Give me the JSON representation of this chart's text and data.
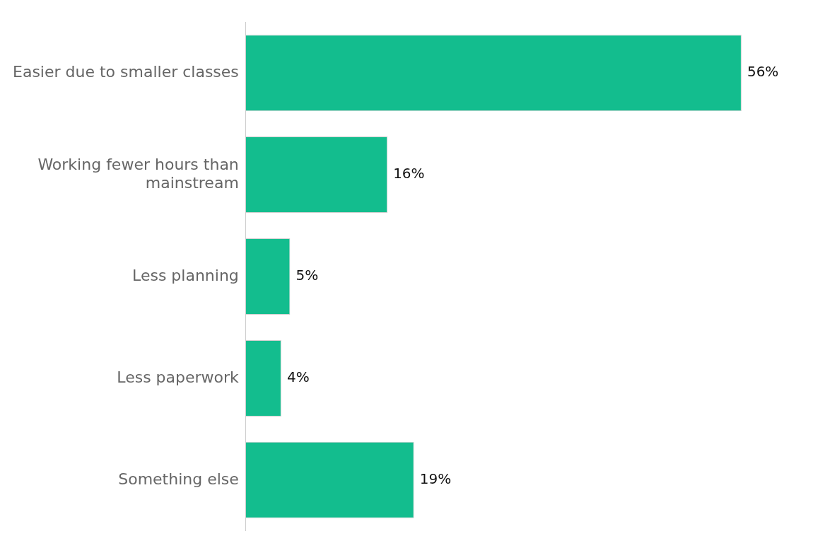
{
  "chart_data": {
    "type": "bar",
    "orientation": "horizontal",
    "categories": [
      "Easier due to smaller classes",
      "Working fewer hours than mainstream",
      "Less planning",
      "Less paperwork",
      "Something else"
    ],
    "values": [
      56,
      16,
      5,
      4,
      19
    ],
    "value_labels": [
      "56%",
      "16%",
      "5%",
      "4%",
      "19%"
    ],
    "color": "#13bd8e",
    "tick_labels": "y",
    "grid": false,
    "legend": false
  }
}
